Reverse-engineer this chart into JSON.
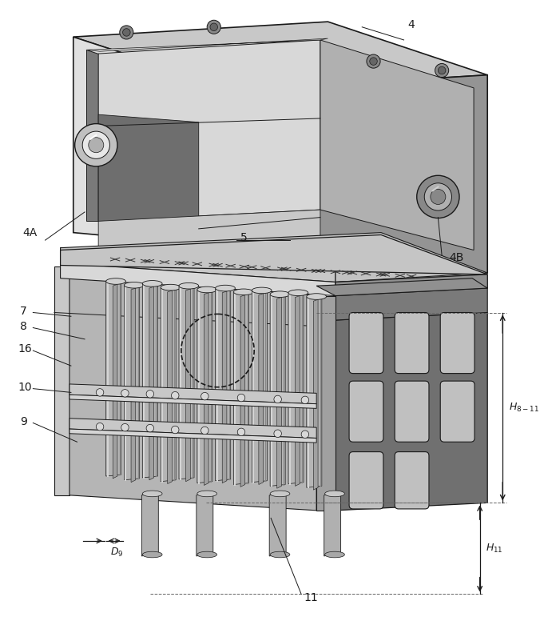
{
  "bg_color": "#ffffff",
  "fig_width": 6.76,
  "fig_height": 8.01,
  "line_color": "#1a1a1a",
  "colors": {
    "top_face": "#c8c8c8",
    "front_light": "#e2e2e2",
    "right_dark": "#888888",
    "cavity_back": "#c0c0c0",
    "cavity_left_wall": "#9a9a9a",
    "inner_dark": "#6e6e6e",
    "plate_top": "#c5c5c5",
    "plate_front": "#d5d5d5",
    "housing_front": "#aaaaaa",
    "housing_right": "#777777",
    "housing_right2": "#666666",
    "tube_body": "#b8b8b8",
    "tube_highlight": "#d8d8d8",
    "tube_shadow": "#888888",
    "tube_inner": "#999999",
    "clamp": "#cccccc",
    "slot_fill": "#c0c0c0"
  }
}
